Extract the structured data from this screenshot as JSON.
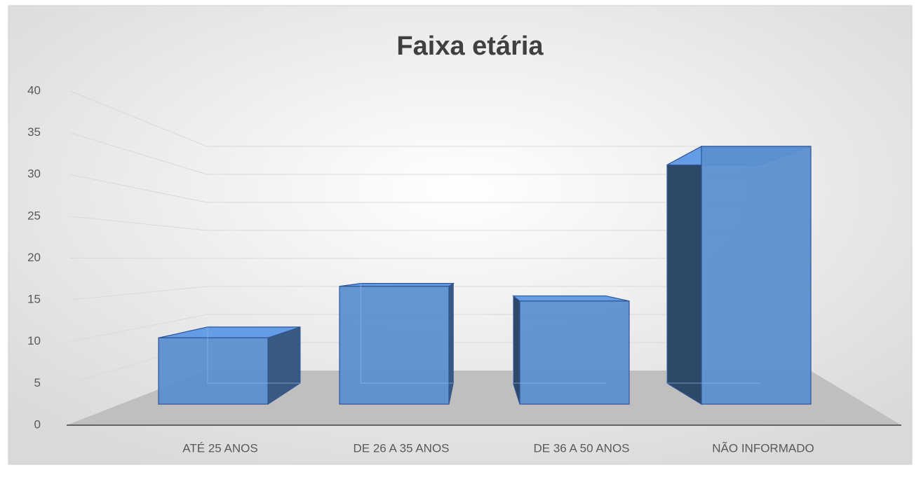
{
  "chart_data": {
    "type": "bar3d",
    "title": "Faixa etária",
    "categories": [
      "ATÉ 25 ANOS",
      "DE 26 A 35 ANOS",
      "DE 36 A 50 ANOS",
      "NÃO INFORMADO"
    ],
    "values": [
      9,
      16,
      14,
      35
    ],
    "color": "#5b8fd0",
    "ylim": [
      0,
      40
    ],
    "yticks": [
      0,
      5,
      10,
      15,
      20,
      25,
      30,
      35,
      40
    ],
    "grid": true
  }
}
